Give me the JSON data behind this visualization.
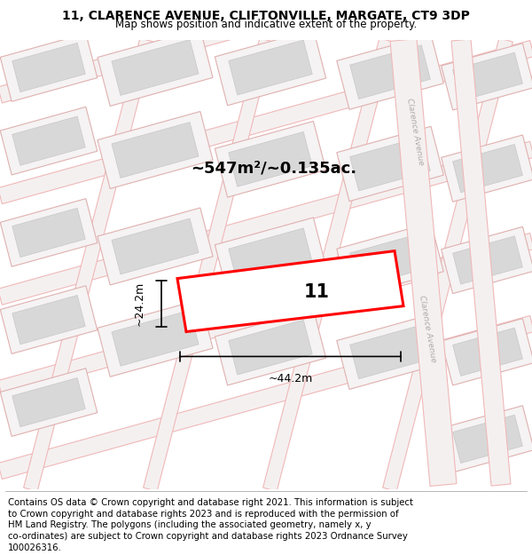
{
  "title_line1": "11, CLARENCE AVENUE, CLIFTONVILLE, MARGATE, CT9 3DP",
  "title_line2": "Map shows position and indicative extent of the property.",
  "area_label": "~547m²/~0.135ac.",
  "width_label": "~44.2m",
  "height_label": "~24.2m",
  "property_number": "11",
  "street_label": "Clarence Avenue",
  "map_bg": "#f7f5f5",
  "block_outer": "#e8e8e8",
  "block_inner": "#d8d8d8",
  "block_border": "#cccccc",
  "road_pink": "#f0b8b8",
  "road_white": "#ffffff",
  "property_fill": "#ffffff",
  "property_edge": "#ff0000",
  "title_fontsize": 10,
  "footer_fontsize": 7.3,
  "footer_lines": [
    "Contains OS data © Crown copyright and database right 2021. This information is subject",
    "to Crown copyright and database rights 2023 and is reproduced with the permission of",
    "HM Land Registry. The polygons (including the associated geometry, namely x, y",
    "co-ordinates) are subject to Crown copyright and database rights 2023 Ordnance Survey",
    "100026316."
  ]
}
